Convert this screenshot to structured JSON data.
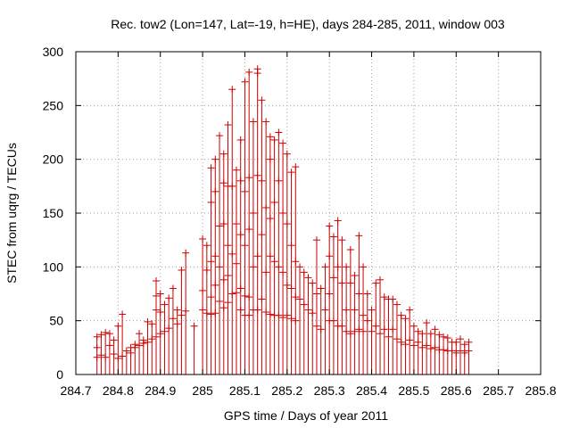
{
  "chart_data": {
    "type": "scatter",
    "title": "Rec. tow2 (Lon=147, Lat=-19, h=HE), days 284-285, 2011, window 003",
    "xlabel": "GPS time / Days of year 2011",
    "ylabel": "STEC from uqrg / TECUs",
    "xlim": [
      284.7,
      285.8
    ],
    "ylim": [
      0,
      300
    ],
    "x_ticks": [
      284.7,
      284.8,
      284.9,
      285.0,
      285.1,
      285.2,
      285.3,
      285.4,
      285.5,
      285.6,
      285.7,
      285.8
    ],
    "x_tick_labels": [
      "284.7",
      "284.8",
      "284.9",
      "285",
      "285.1",
      "285.2",
      "285.3",
      "285.4",
      "285.5",
      "285.6",
      "285.7",
      "285.8"
    ],
    "y_ticks": [
      0,
      50,
      100,
      150,
      200,
      250,
      300
    ],
    "y_tick_labels": [
      "0",
      "50",
      "100",
      "150",
      "200",
      "250",
      "300"
    ],
    "grid": true,
    "marker": "plus with vertical error bar to 0",
    "color": "#cc0000",
    "series": [
      {
        "name": "STEC",
        "points": [
          [
            284.75,
            35
          ],
          [
            284.75,
            25
          ],
          [
            284.75,
            16
          ],
          [
            284.76,
            37
          ],
          [
            284.76,
            18
          ],
          [
            284.77,
            39
          ],
          [
            284.77,
            16
          ],
          [
            284.78,
            38
          ],
          [
            284.78,
            27
          ],
          [
            284.79,
            32
          ],
          [
            284.79,
            19
          ],
          [
            284.8,
            45
          ],
          [
            284.8,
            15
          ],
          [
            284.81,
            56
          ],
          [
            284.81,
            17
          ],
          [
            284.82,
            22
          ],
          [
            284.83,
            20
          ],
          [
            284.83,
            25
          ],
          [
            284.84,
            25
          ],
          [
            284.84,
            28
          ],
          [
            284.85,
            38
          ],
          [
            284.85,
            27
          ],
          [
            284.86,
            32
          ],
          [
            284.86,
            29
          ],
          [
            284.87,
            49
          ],
          [
            284.87,
            30
          ],
          [
            284.88,
            47
          ],
          [
            284.88,
            33
          ],
          [
            284.89,
            60
          ],
          [
            284.89,
            73
          ],
          [
            284.89,
            87
          ],
          [
            284.89,
            35
          ],
          [
            284.9,
            58
          ],
          [
            284.9,
            75
          ],
          [
            284.9,
            38
          ],
          [
            284.91,
            65
          ],
          [
            284.91,
            40
          ],
          [
            284.92,
            71
          ],
          [
            284.92,
            43
          ],
          [
            284.93,
            80
          ],
          [
            284.93,
            52
          ],
          [
            284.94,
            60
          ],
          [
            284.94,
            47
          ],
          [
            284.95,
            97
          ],
          [
            284.95,
            55
          ],
          [
            284.96,
            113
          ],
          [
            284.96,
            59
          ],
          [
            284.98,
            45
          ],
          [
            285.0,
            126
          ],
          [
            285.0,
            78
          ],
          [
            285.0,
            60
          ],
          [
            285.01,
            120
          ],
          [
            285.01,
            97
          ],
          [
            285.01,
            57
          ],
          [
            285.02,
            192
          ],
          [
            285.02,
            160
          ],
          [
            285.02,
            105
          ],
          [
            285.02,
            72
          ],
          [
            285.02,
            56
          ],
          [
            285.03,
            200
          ],
          [
            285.03,
            170
          ],
          [
            285.03,
            110
          ],
          [
            285.03,
            83
          ],
          [
            285.03,
            57
          ],
          [
            285.04,
            222
          ],
          [
            285.04,
            138
          ],
          [
            285.04,
            100
          ],
          [
            285.04,
            68
          ],
          [
            285.05,
            205
          ],
          [
            285.05,
            178
          ],
          [
            285.05,
            140
          ],
          [
            285.05,
            88
          ],
          [
            285.05,
            62
          ],
          [
            285.06,
            232
          ],
          [
            285.06,
            175
          ],
          [
            285.06,
            120
          ],
          [
            285.06,
            92
          ],
          [
            285.06,
            67
          ],
          [
            285.07,
            265
          ],
          [
            285.07,
            175
          ],
          [
            285.07,
            112
          ],
          [
            285.07,
            75
          ],
          [
            285.08,
            190
          ],
          [
            285.08,
            140
          ],
          [
            285.08,
            103
          ],
          [
            285.08,
            76
          ],
          [
            285.09,
            218
          ],
          [
            285.09,
            180
          ],
          [
            285.09,
            130
          ],
          [
            285.09,
            80
          ],
          [
            285.09,
            60
          ],
          [
            285.1,
            272
          ],
          [
            285.1,
            170
          ],
          [
            285.1,
            120
          ],
          [
            285.1,
            73
          ],
          [
            285.1,
            55
          ],
          [
            285.11,
            281
          ],
          [
            285.11,
            183
          ],
          [
            285.11,
            135
          ],
          [
            285.11,
            72
          ],
          [
            285.11,
            55
          ],
          [
            285.12,
            235
          ],
          [
            285.12,
            150
          ],
          [
            285.12,
            100
          ],
          [
            285.12,
            60
          ],
          [
            285.13,
            284
          ],
          [
            285.13,
            280
          ],
          [
            285.13,
            185
          ],
          [
            285.13,
            110
          ],
          [
            285.13,
            60
          ],
          [
            285.14,
            255
          ],
          [
            285.14,
            180
          ],
          [
            285.14,
            130
          ],
          [
            285.14,
            70
          ],
          [
            285.15,
            235
          ],
          [
            285.15,
            155
          ],
          [
            285.15,
            95
          ],
          [
            285.15,
            58
          ],
          [
            285.16,
            221
          ],
          [
            285.16,
            200
          ],
          [
            285.16,
            145
          ],
          [
            285.16,
            110
          ],
          [
            285.16,
            56
          ],
          [
            285.17,
            218
          ],
          [
            285.17,
            160
          ],
          [
            285.17,
            105
          ],
          [
            285.17,
            55
          ],
          [
            285.18,
            225
          ],
          [
            285.18,
            180
          ],
          [
            285.18,
            100
          ],
          [
            285.18,
            55
          ],
          [
            285.19,
            215
          ],
          [
            285.19,
            150
          ],
          [
            285.19,
            95
          ],
          [
            285.19,
            53
          ],
          [
            285.2,
            205
          ],
          [
            285.2,
            140
          ],
          [
            285.2,
            83
          ],
          [
            285.2,
            55
          ],
          [
            285.21,
            188
          ],
          [
            285.21,
            120
          ],
          [
            285.21,
            80
          ],
          [
            285.21,
            52
          ],
          [
            285.22,
            193
          ],
          [
            285.22,
            105
          ],
          [
            285.22,
            72
          ],
          [
            285.22,
            50
          ],
          [
            285.23,
            100
          ],
          [
            285.23,
            70
          ],
          [
            285.24,
            95
          ],
          [
            285.24,
            65
          ],
          [
            285.25,
            90
          ],
          [
            285.25,
            60
          ],
          [
            285.26,
            85
          ],
          [
            285.26,
            57
          ],
          [
            285.27,
            125
          ],
          [
            285.27,
            75
          ],
          [
            285.27,
            45
          ],
          [
            285.28,
            80
          ],
          [
            285.28,
            42
          ],
          [
            285.29,
            100
          ],
          [
            285.29,
            60
          ],
          [
            285.3,
            138
          ],
          [
            285.3,
            110
          ],
          [
            285.3,
            75
          ],
          [
            285.3,
            50
          ],
          [
            285.31,
            128
          ],
          [
            285.31,
            90
          ],
          [
            285.31,
            50
          ],
          [
            285.32,
            143
          ],
          [
            285.32,
            100
          ],
          [
            285.32,
            45
          ],
          [
            285.33,
            125
          ],
          [
            285.33,
            85
          ],
          [
            285.33,
            45
          ],
          [
            285.34,
            100
          ],
          [
            285.34,
            60
          ],
          [
            285.34,
            40
          ],
          [
            285.35,
            116
          ],
          [
            285.35,
            85
          ],
          [
            285.35,
            38
          ],
          [
            285.36,
            92
          ],
          [
            285.36,
            60
          ],
          [
            285.36,
            40
          ],
          [
            285.37,
            129
          ],
          [
            285.37,
            75
          ],
          [
            285.37,
            42
          ],
          [
            285.38,
            100
          ],
          [
            285.38,
            55
          ],
          [
            285.38,
            40
          ],
          [
            285.39,
            75
          ],
          [
            285.39,
            50
          ],
          [
            285.4,
            60
          ],
          [
            285.4,
            40
          ],
          [
            285.41,
            85
          ],
          [
            285.41,
            45
          ],
          [
            285.42,
            88
          ],
          [
            285.42,
            38
          ],
          [
            285.43,
            72
          ],
          [
            285.43,
            42
          ],
          [
            285.44,
            70
          ],
          [
            285.44,
            35
          ],
          [
            285.45,
            70
          ],
          [
            285.45,
            42
          ],
          [
            285.46,
            65
          ],
          [
            285.46,
            33
          ],
          [
            285.47,
            55
          ],
          [
            285.47,
            30
          ],
          [
            285.48,
            52
          ],
          [
            285.48,
            28
          ],
          [
            285.49,
            60
          ],
          [
            285.49,
            32
          ],
          [
            285.5,
            45
          ],
          [
            285.5,
            27
          ],
          [
            285.51,
            40
          ],
          [
            285.51,
            30
          ],
          [
            285.52,
            38
          ],
          [
            285.52,
            25
          ],
          [
            285.53,
            48
          ],
          [
            285.53,
            27
          ],
          [
            285.54,
            38
          ],
          [
            285.54,
            24
          ],
          [
            285.55,
            42
          ],
          [
            285.55,
            25
          ],
          [
            285.56,
            37
          ],
          [
            285.56,
            23
          ],
          [
            285.57,
            35
          ],
          [
            285.57,
            23
          ],
          [
            285.58,
            34
          ],
          [
            285.58,
            22
          ],
          [
            285.59,
            30
          ],
          [
            285.59,
            22
          ],
          [
            285.6,
            30
          ],
          [
            285.6,
            20
          ],
          [
            285.61,
            33
          ],
          [
            285.61,
            22
          ],
          [
            285.62,
            28
          ],
          [
            285.62,
            20
          ],
          [
            285.63,
            30
          ],
          [
            285.63,
            22
          ]
        ]
      }
    ]
  }
}
